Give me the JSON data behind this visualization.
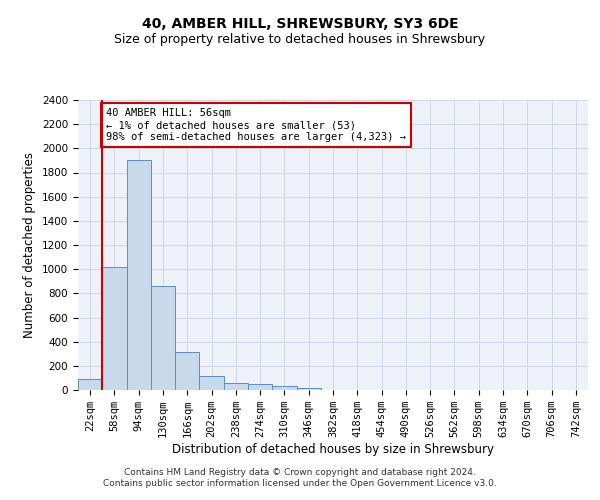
{
  "title": "40, AMBER HILL, SHREWSBURY, SY3 6DE",
  "subtitle": "Size of property relative to detached houses in Shrewsbury",
  "xlabel": "Distribution of detached houses by size in Shrewsbury",
  "ylabel": "Number of detached properties",
  "bin_labels": [
    "22sqm",
    "58sqm",
    "94sqm",
    "130sqm",
    "166sqm",
    "202sqm",
    "238sqm",
    "274sqm",
    "310sqm",
    "346sqm",
    "382sqm",
    "418sqm",
    "454sqm",
    "490sqm",
    "526sqm",
    "562sqm",
    "598sqm",
    "634sqm",
    "670sqm",
    "706sqm",
    "742sqm"
  ],
  "bar_values": [
    90,
    1020,
    1900,
    860,
    315,
    115,
    60,
    50,
    30,
    20,
    0,
    0,
    0,
    0,
    0,
    0,
    0,
    0,
    0,
    0,
    0
  ],
  "bar_color": "#c9d9ec",
  "bar_edge_color": "#5b8fc9",
  "grid_color": "#d0d8e8",
  "bg_color": "#eef2f8",
  "ylim": [
    0,
    2400
  ],
  "yticks": [
    0,
    200,
    400,
    600,
    800,
    1000,
    1200,
    1400,
    1600,
    1800,
    2000,
    2200,
    2400
  ],
  "property_label": "40 AMBER HILL: 56sqm",
  "annotation_line1": "← 1% of detached houses are smaller (53)",
  "annotation_line2": "98% of semi-detached houses are larger (4,323) →",
  "annotation_box_color": "#ffffff",
  "annotation_box_edge": "#cc0000",
  "vline_color": "#cc0000",
  "footer1": "Contains HM Land Registry data © Crown copyright and database right 2024.",
  "footer2": "Contains public sector information licensed under the Open Government Licence v3.0.",
  "title_fontsize": 10,
  "subtitle_fontsize": 9,
  "axis_label_fontsize": 8.5,
  "tick_fontsize": 7.5,
  "annotation_fontsize": 7.5,
  "footer_fontsize": 6.5
}
